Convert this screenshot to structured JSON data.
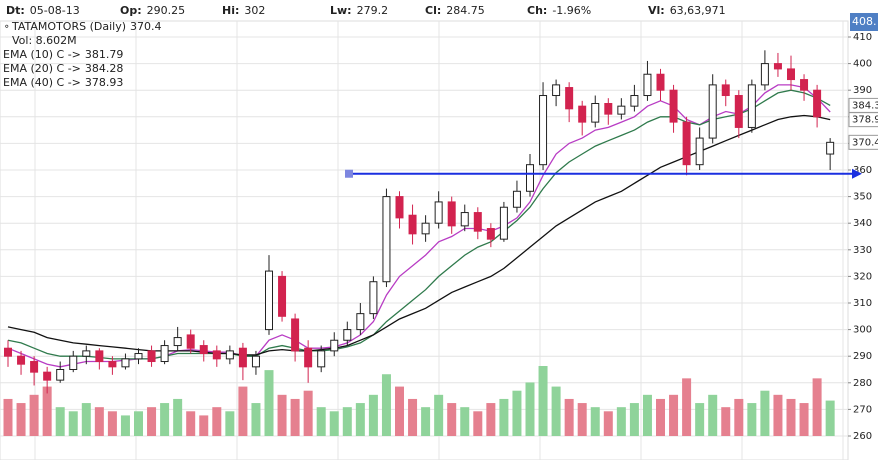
{
  "chart_data": {
    "type": "candlestick",
    "header": [
      {
        "label": "Dt:",
        "value": "05-08-13"
      },
      {
        "label": "Op:",
        "value": "290.25"
      },
      {
        "label": "Hi:",
        "value": "302"
      },
      {
        "label": "Lw:",
        "value": "279.2"
      },
      {
        "label": "Cl:",
        "value": "284.75"
      },
      {
        "label": "Ch:",
        "value": "-1.96%"
      },
      {
        "label": "Vl:",
        "value": "63,63,971"
      }
    ],
    "name": "TATAMOTORS (Daily)",
    "volume_legend": "Vol: 8.602M",
    "top_badge": "408.",
    "ylim": [
      260,
      410
    ],
    "yticks": [
      260,
      270,
      280,
      290,
      300,
      310,
      320,
      330,
      340,
      350,
      360,
      370,
      380,
      390,
      400,
      410
    ],
    "grid": true,
    "up_color": "#ffffff",
    "down_color": "#d2234f",
    "volume_up_color": "#8fd39a",
    "volume_down_color": "#e5808f",
    "open": [
      293,
      290,
      288,
      284,
      281,
      285,
      290,
      292,
      288,
      286,
      289,
      292,
      288,
      294,
      298,
      294,
      292,
      289,
      293,
      286,
      300,
      320,
      304,
      293,
      286,
      292,
      296,
      300,
      306,
      318,
      350,
      343,
      336,
      340,
      348,
      339,
      344,
      338,
      334,
      346,
      352,
      362,
      388,
      391,
      384,
      378,
      385,
      381,
      384,
      388,
      396,
      390,
      378,
      362,
      372,
      392,
      388,
      376,
      392,
      400,
      398,
      394,
      390,
      366
    ],
    "high": [
      296,
      292,
      290,
      286,
      288,
      292,
      294,
      293,
      290,
      291,
      293,
      294,
      296,
      301,
      300,
      296,
      294,
      294,
      295,
      292,
      328,
      322,
      306,
      296,
      294,
      299,
      303,
      310,
      320,
      353,
      352,
      347,
      343,
      352,
      350,
      347,
      346,
      340,
      348,
      356,
      366,
      393,
      394,
      393,
      386,
      388,
      387,
      387,
      392,
      401,
      398,
      392,
      380,
      376,
      396,
      394,
      390,
      394,
      405,
      404,
      403,
      396,
      392,
      372
    ],
    "low": [
      286,
      283,
      279,
      276,
      280,
      284,
      287,
      285,
      283,
      285,
      287,
      286,
      287,
      292,
      291,
      288,
      286,
      287,
      281,
      283,
      298,
      303,
      288,
      280,
      284,
      290,
      294,
      298,
      304,
      316,
      338,
      332,
      333,
      338,
      336,
      337,
      334,
      331,
      333,
      344,
      350,
      360,
      384,
      378,
      373,
      376,
      377,
      379,
      382,
      386,
      386,
      374,
      358,
      360,
      370,
      384,
      372,
      374,
      390,
      395,
      390,
      386,
      376,
      360
    ],
    "close": [
      290,
      287,
      284,
      281,
      285,
      290,
      292,
      288,
      286,
      289,
      291,
      288,
      294,
      297,
      293,
      291,
      289,
      292,
      286,
      290,
      322,
      305,
      292,
      286,
      292,
      296,
      300,
      306,
      318,
      350,
      342,
      336,
      340,
      348,
      339,
      344,
      337,
      334,
      346,
      352,
      362,
      388,
      392,
      383,
      378,
      385,
      381,
      384,
      388,
      396,
      390,
      378,
      362,
      372,
      392,
      388,
      376,
      392,
      400,
      398,
      394,
      390,
      380,
      370.4
    ],
    "volume": [
      9,
      8,
      10,
      12,
      7,
      6,
      8,
      7,
      6,
      5,
      6,
      7,
      8,
      9,
      6,
      5,
      7,
      6,
      12,
      8,
      16,
      10,
      9,
      11,
      7,
      6,
      7,
      8,
      10,
      15,
      12,
      9,
      7,
      10,
      8,
      7,
      6,
      8,
      9,
      11,
      13,
      17,
      12,
      9,
      8,
      7,
      6,
      7,
      8,
      10,
      9,
      10,
      14,
      8,
      10,
      7,
      9,
      8,
      11,
      10,
      9,
      8,
      14,
      8.602
    ],
    "series": [
      {
        "name": "EMA (10) C ->",
        "color": "#b83cc4",
        "values": [
          293,
          291,
          289,
          287,
          286,
          287,
          288,
          288,
          288,
          288.5,
          289,
          289,
          290,
          292,
          292.5,
          292,
          291.5,
          291.5,
          290,
          290,
          296,
          298,
          296,
          293,
          293,
          293.5,
          295,
          298,
          303,
          313,
          320,
          324,
          328,
          333,
          335,
          338,
          338,
          337,
          339,
          342,
          348,
          358,
          366,
          370,
          372,
          375,
          376,
          378,
          380,
          384,
          386,
          384,
          379,
          377,
          380,
          382,
          381,
          384,
          389,
          392,
          392,
          391,
          387,
          381.79
        ]
      },
      {
        "name": "EMA (20) C ->",
        "color": "#2f7a4c",
        "values": [
          296,
          295,
          293,
          291,
          290,
          290,
          290,
          289.5,
          289,
          289,
          289,
          289,
          290,
          291,
          291,
          291,
          291,
          291,
          290,
          290,
          293,
          294,
          293,
          292,
          292,
          292.5,
          293.5,
          295,
          298,
          303,
          307,
          311,
          315,
          320,
          324,
          328,
          331,
          333,
          337,
          341,
          346,
          353,
          359,
          363,
          366,
          369,
          371,
          373,
          375,
          378,
          380,
          380,
          378,
          377,
          379,
          380,
          381,
          383,
          386,
          389,
          390,
          389,
          387,
          384.28
        ]
      },
      {
        "name": "EMA (40) C ->",
        "color": "#111111",
        "values": [
          301,
          300,
          299,
          297,
          296,
          295,
          294.5,
          294,
          293.5,
          293,
          292.5,
          292,
          292,
          292,
          292,
          291.5,
          291,
          291,
          290.5,
          290.5,
          292,
          292.5,
          292,
          292,
          292.5,
          293,
          294,
          296,
          298,
          301,
          304,
          306,
          308,
          311,
          314,
          316,
          318,
          320,
          323,
          327,
          331,
          335,
          339,
          342,
          345,
          348,
          350,
          352,
          355,
          358,
          361,
          363,
          365,
          367,
          369,
          371,
          373,
          375,
          377,
          379,
          380,
          380.5,
          380,
          378.93
        ]
      }
    ],
    "badges": [
      {
        "value": 384.28,
        "label": "384.3"
      },
      {
        "value": 378.93,
        "label": "378.9"
      },
      {
        "value": 370.4,
        "label": "370.4"
      }
    ],
    "hline": {
      "value": 358.6,
      "color": "#1a2fe0"
    }
  }
}
